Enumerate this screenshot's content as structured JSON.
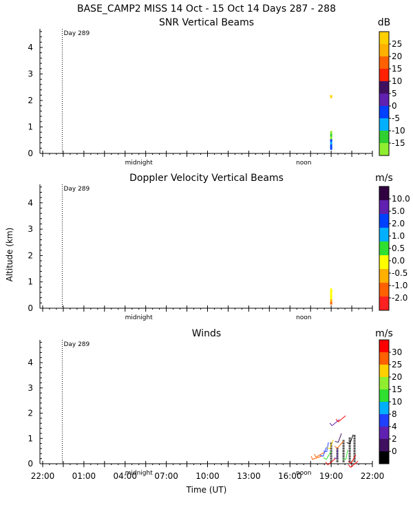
{
  "header": {
    "title": "BASE_CAMP2 MISS  14 Oct - 15 Oct 14 Days 287 - 288"
  },
  "y_axis_label": "Altitude (km)",
  "x_axis_label": "Time (UT)",
  "x_ticks": [
    "22:00",
    "01:00",
    "04:00",
    "07:00",
    "10:00",
    "13:00",
    "16:00",
    "19:00",
    "22:00"
  ],
  "markers": {
    "day": "Day 289",
    "midnight": "midnight",
    "noon": "noon"
  },
  "colors": {
    "snr": [
      "#90ee30",
      "#30d030",
      "#00b0ff",
      "#0040ff",
      "#6020b0",
      "#401060",
      "#ff2000",
      "#ff6000",
      "#ffb000",
      "#ffd000"
    ],
    "doppler": [
      "#ff2020",
      "#ff6000",
      "#ffb000",
      "#ffff00",
      "#30e030",
      "#00b0ff",
      "#0040ff",
      "#6020b0",
      "#300040"
    ],
    "winds": [
      "#000000",
      "#401060",
      "#6020b0",
      "#2040ff",
      "#00b0ff",
      "#30e030",
      "#90ee30",
      "#ffd000",
      "#ff6000",
      "#ff0000"
    ]
  },
  "chart_data": [
    {
      "id": "snr",
      "type": "heatmap",
      "title": "SNR Vertical Beams",
      "unit": "dB",
      "ylabel": "",
      "ylim": [
        0,
        4.7
      ],
      "yticks": [
        0,
        1,
        2,
        3,
        4
      ],
      "x_range_hours": [
        0,
        48
      ],
      "colorbar_labels": [
        "-15",
        "-10",
        "-5",
        "0",
        "5",
        "10",
        "15",
        "20",
        "25"
      ],
      "cells": [
        {
          "t": 42.0,
          "alt": 0.2,
          "v": 3
        },
        {
          "t": 42.0,
          "alt": 0.3,
          "v": 3
        },
        {
          "t": 42.0,
          "alt": 0.4,
          "v": 2
        },
        {
          "t": 42.0,
          "alt": 0.5,
          "v": 3
        },
        {
          "t": 42.0,
          "alt": 0.6,
          "v": 0
        },
        {
          "t": 42.0,
          "alt": 0.7,
          "v": 1
        },
        {
          "t": 42.0,
          "alt": 0.8,
          "v": 0
        },
        {
          "t": 42.0,
          "alt": 2.15,
          "v": 9
        }
      ]
    },
    {
      "id": "doppler",
      "type": "heatmap",
      "title": "Doppler Velocity Vertical Beams",
      "unit": "m/s",
      "ylabel": "Altitude (km)",
      "ylim": [
        0,
        4.7
      ],
      "yticks": [
        0,
        1,
        2,
        3,
        4
      ],
      "x_range_hours": [
        0,
        48
      ],
      "colorbar_labels": [
        "-2.0",
        "-1.0",
        "-0.5",
        "0.0",
        "0.5",
        "1.0",
        "2.0",
        "5.0",
        "10.0"
      ],
      "cells": [
        {
          "t": 42.0,
          "alt": 0.2,
          "v": 1
        },
        {
          "t": 42.0,
          "alt": 0.3,
          "v": 2
        },
        {
          "t": 42.0,
          "alt": 0.4,
          "v": 3
        },
        {
          "t": 42.0,
          "alt": 0.5,
          "v": 3
        },
        {
          "t": 42.0,
          "alt": 0.6,
          "v": 3
        },
        {
          "t": 42.0,
          "alt": 0.7,
          "v": 3
        }
      ]
    },
    {
      "id": "winds",
      "type": "scatter",
      "title": "Winds",
      "unit": "m/s",
      "ylabel": "",
      "ylim": [
        0,
        4.9
      ],
      "yticks": [
        0,
        1,
        2,
        3,
        4
      ],
      "x_range_hours": [
        0,
        48
      ],
      "colorbar_labels": [
        "0",
        "2",
        "4",
        "8",
        "10",
        "15",
        "20",
        "25",
        "30"
      ],
      "barbs": [
        {
          "t": 40.6,
          "alt": 0.3,
          "dir": 250,
          "c": 8
        },
        {
          "t": 41.0,
          "alt": 0.45,
          "dir": 240,
          "c": 8
        },
        {
          "t": 41.3,
          "alt": 0.65,
          "dir": 200,
          "c": 3
        },
        {
          "t": 41.6,
          "alt": 0.85,
          "dir": 190,
          "c": 3
        },
        {
          "t": 42.0,
          "alt": 0.5,
          "dir": 210,
          "c": 5
        },
        {
          "t": 42.3,
          "alt": 0.95,
          "dir": 200,
          "c": 7
        },
        {
          "t": 42.6,
          "alt": 0.2,
          "dir": 230,
          "c": 9
        },
        {
          "t": 42.9,
          "alt": 0.6,
          "dir": 180,
          "c": 2
        },
        {
          "t": 43.2,
          "alt": 1.75,
          "dir": 230,
          "c": 2
        },
        {
          "t": 43.5,
          "alt": 1.2,
          "dir": 200,
          "c": 1
        },
        {
          "t": 43.8,
          "alt": 0.9,
          "dir": 220,
          "c": 8
        },
        {
          "t": 44.1,
          "alt": 1.9,
          "dir": 230,
          "c": 9
        },
        {
          "t": 44.4,
          "alt": 0.55,
          "dir": 190,
          "c": 5
        },
        {
          "t": 45.2,
          "alt": 1.15,
          "dir": 200,
          "c": 0
        },
        {
          "t": 45.6,
          "alt": 0.35,
          "dir": 210,
          "c": 9
        },
        {
          "t": 45.9,
          "alt": 0.1,
          "dir": 230,
          "c": 9
        }
      ],
      "dots": [
        {
          "t": 42.0,
          "alts": [
            0.1,
            0.2,
            0.3,
            0.4,
            0.5,
            0.6,
            0.7,
            0.8
          ]
        },
        {
          "t": 42.9,
          "alts": [
            0.1,
            0.2,
            0.3,
            0.4,
            0.5,
            0.6
          ]
        },
        {
          "t": 43.8,
          "alts": [
            0.1,
            0.2,
            0.3,
            0.4,
            0.5,
            0.6,
            0.7,
            0.8,
            0.9
          ]
        },
        {
          "t": 44.7,
          "alts": [
            0.1,
            0.2,
            0.3,
            0.4,
            0.5,
            0.6,
            0.7,
            0.8,
            0.9,
            1.0
          ]
        },
        {
          "t": 45.4,
          "alts": [
            0.1,
            0.2,
            0.3,
            0.4,
            0.5,
            0.6,
            0.7,
            0.8,
            0.9,
            1.0,
            1.1
          ]
        }
      ]
    }
  ]
}
